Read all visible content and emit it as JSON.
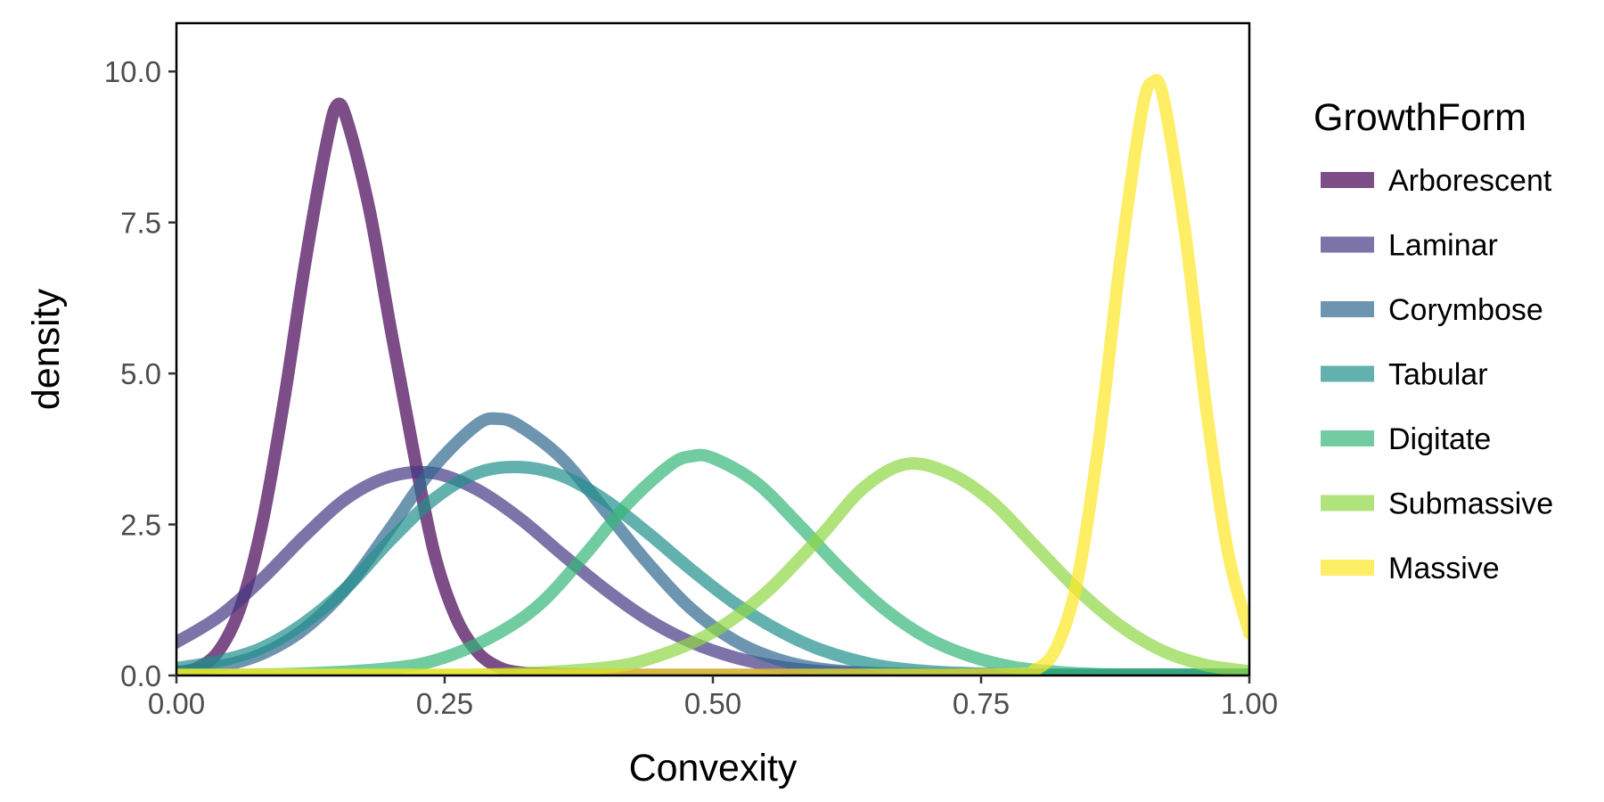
{
  "chart_data": {
    "type": "line",
    "title": "",
    "xlabel": "Convexity",
    "ylabel": "density",
    "xlim": [
      0,
      1
    ],
    "ylim": [
      0,
      10.8
    ],
    "x_ticks": [
      0,
      0.25,
      0.5,
      0.75,
      1
    ],
    "x_tick_labels": [
      "0.00",
      "0.25",
      "0.50",
      "0.75",
      "1.00"
    ],
    "y_ticks": [
      0,
      2.5,
      5,
      7.5,
      10
    ],
    "y_tick_labels": [
      "0.0",
      "2.5",
      "5.0",
      "7.5",
      "10.0"
    ],
    "grid": false,
    "legend": {
      "title": "GrowthForm",
      "position": "right"
    },
    "series": [
      {
        "name": "Arborescent",
        "color": "#440154",
        "x": [
          0,
          0.02,
          0.04,
          0.06,
          0.08,
          0.1,
          0.12,
          0.14,
          0.15,
          0.16,
          0.18,
          0.2,
          0.22,
          0.24,
          0.26,
          0.28,
          0.3,
          0.32,
          0.35,
          0.4,
          0.5,
          0.6,
          0.8,
          1.0
        ],
        "y": [
          0.05,
          0.13,
          0.42,
          1.15,
          2.52,
          4.52,
          6.83,
          8.82,
          9.45,
          9.13,
          7.7,
          5.71,
          3.8,
          2.05,
          0.98,
          0.4,
          0.14,
          0.05,
          0.02,
          0.01,
          0.01,
          0.01,
          0.01,
          0.01
        ]
      },
      {
        "name": "Laminar",
        "color": "#443983",
        "x": [
          0,
          0.04,
          0.08,
          0.12,
          0.16,
          0.2,
          0.24,
          0.28,
          0.32,
          0.36,
          0.4,
          0.44,
          0.48,
          0.52,
          0.56,
          0.6,
          0.65,
          0.7,
          0.8,
          0.9,
          1.0
        ],
        "y": [
          0.55,
          0.98,
          1.6,
          2.32,
          2.95,
          3.3,
          3.35,
          3.08,
          2.6,
          2.0,
          1.42,
          0.92,
          0.55,
          0.3,
          0.15,
          0.07,
          0.03,
          0.02,
          0.01,
          0.01,
          0.01
        ]
      },
      {
        "name": "Corymbose",
        "color": "#31688E",
        "x": [
          0,
          0.04,
          0.08,
          0.12,
          0.16,
          0.2,
          0.24,
          0.28,
          0.3,
          0.32,
          0.36,
          0.4,
          0.44,
          0.48,
          0.52,
          0.56,
          0.6,
          0.65,
          0.7,
          0.8,
          0.9,
          1.0
        ],
        "y": [
          0.05,
          0.15,
          0.36,
          0.78,
          1.48,
          2.45,
          3.45,
          4.15,
          4.25,
          4.13,
          3.58,
          2.72,
          1.85,
          1.1,
          0.58,
          0.27,
          0.11,
          0.04,
          0.02,
          0.01,
          0.01,
          0.01
        ]
      },
      {
        "name": "Tabular",
        "color": "#21908C",
        "x": [
          0,
          0.04,
          0.08,
          0.12,
          0.16,
          0.2,
          0.24,
          0.28,
          0.32,
          0.36,
          0.4,
          0.44,
          0.48,
          0.52,
          0.56,
          0.6,
          0.65,
          0.7,
          0.75,
          0.8,
          0.9,
          1.0
        ],
        "y": [
          0.12,
          0.24,
          0.46,
          0.88,
          1.48,
          2.25,
          2.92,
          3.35,
          3.45,
          3.3,
          2.9,
          2.35,
          1.75,
          1.2,
          0.76,
          0.43,
          0.18,
          0.07,
          0.03,
          0.01,
          0.01,
          0.01
        ]
      },
      {
        "name": "Digitate",
        "color": "#35B779",
        "x": [
          0,
          0.1,
          0.2,
          0.25,
          0.3,
          0.34,
          0.38,
          0.42,
          0.46,
          0.48,
          0.5,
          0.54,
          0.58,
          0.62,
          0.66,
          0.7,
          0.74,
          0.78,
          0.82,
          0.86,
          0.9,
          1.0
        ],
        "y": [
          0.01,
          0.02,
          0.12,
          0.3,
          0.7,
          1.2,
          1.98,
          2.83,
          3.48,
          3.63,
          3.6,
          3.2,
          2.5,
          1.75,
          1.1,
          0.62,
          0.32,
          0.14,
          0.06,
          0.02,
          0.01,
          0.01
        ]
      },
      {
        "name": "Submassive",
        "color": "#8FD744",
        "x": [
          0,
          0.1,
          0.2,
          0.3,
          0.4,
          0.45,
          0.5,
          0.55,
          0.6,
          0.64,
          0.68,
          0.72,
          0.76,
          0.8,
          0.84,
          0.88,
          0.92,
          0.96,
          1.0
        ],
        "y": [
          0.01,
          0.01,
          0.01,
          0.02,
          0.13,
          0.33,
          0.72,
          1.38,
          2.3,
          3.1,
          3.5,
          3.35,
          2.88,
          2.15,
          1.42,
          0.82,
          0.4,
          0.17,
          0.07
        ]
      },
      {
        "name": "Massive",
        "color": "#FDE725",
        "x": [
          0,
          0.2,
          0.4,
          0.6,
          0.78,
          0.8,
          0.82,
          0.84,
          0.86,
          0.88,
          0.9,
          0.91,
          0.92,
          0.94,
          0.96,
          0.98,
          1.0
        ],
        "y": [
          0.01,
          0.01,
          0.01,
          0.01,
          0.02,
          0.09,
          0.45,
          1.6,
          3.9,
          6.9,
          9.35,
          9.82,
          9.55,
          7.35,
          4.4,
          2.05,
          0.7
        ]
      }
    ]
  }
}
